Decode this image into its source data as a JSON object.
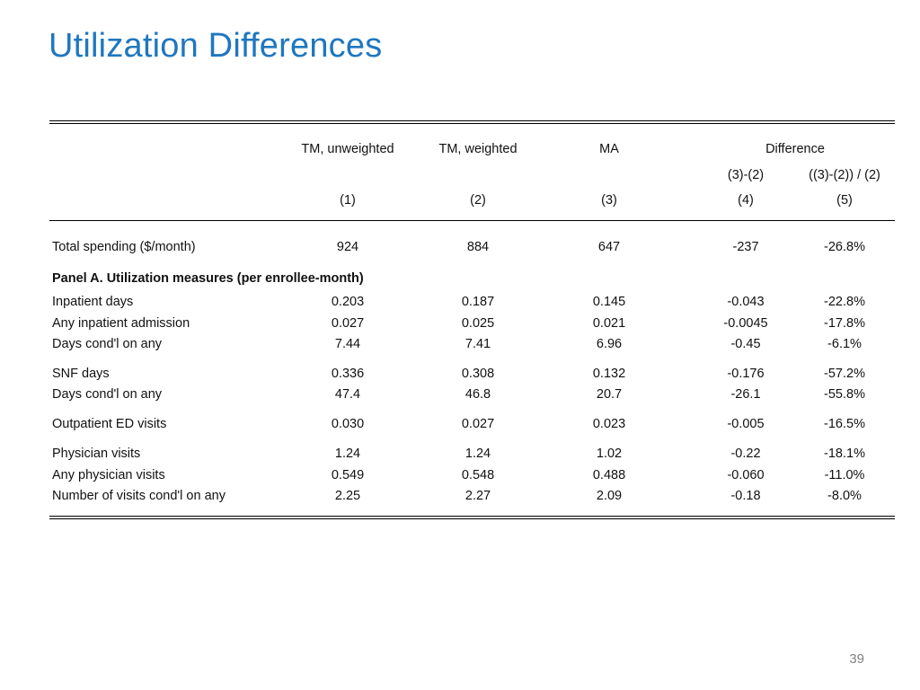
{
  "title": "Utilization Differences",
  "header": {
    "col1": "TM, unweighted",
    "col2": "TM, weighted",
    "col3": "MA",
    "difference": "Difference",
    "col4_sub": "(3)-(2)",
    "col5_sub": "((3)-(2)) / (2)",
    "num1": "(1)",
    "num2": "(2)",
    "num3": "(3)",
    "num4": "(4)",
    "num5": "(5)"
  },
  "total": {
    "label": "Total spending ($/month)",
    "values": [
      "924",
      "884",
      "647",
      "-237",
      "-26.8%"
    ]
  },
  "panel_a_heading": "Panel A. Utilization measures (per enrollee-month)",
  "rows": [
    {
      "label": "Inpatient days",
      "values": [
        "0.203",
        "0.187",
        "0.145",
        "-0.043",
        "-22.8%"
      ]
    },
    {
      "label": "Any inpatient admission",
      "values": [
        "0.027",
        "0.025",
        "0.021",
        "-0.0045",
        "-17.8%"
      ]
    },
    {
      "label": "Days cond'l on any",
      "values": [
        "7.44",
        "7.41",
        "6.96",
        "-0.45",
        "-6.1%"
      ]
    },
    {
      "label": "SNF days",
      "values": [
        "0.336",
        "0.308",
        "0.132",
        "-0.176",
        "-57.2%"
      ]
    },
    {
      "label": "Days cond'l on any",
      "values": [
        "47.4",
        "46.8",
        "20.7",
        "-26.1",
        "-55.8%"
      ]
    },
    {
      "label": "Outpatient ED visits",
      "values": [
        "0.030",
        "0.027",
        "0.023",
        "-0.005",
        "-16.5%"
      ]
    },
    {
      "label": "Physician visits",
      "values": [
        "1.24",
        "1.24",
        "1.02",
        "-0.22",
        "-18.1%"
      ]
    },
    {
      "label": "Any physician visits",
      "values": [
        "0.549",
        "0.548",
        "0.488",
        "-0.060",
        "-11.0%"
      ]
    },
    {
      "label": "Number of visits cond'l on any",
      "values": [
        "2.25",
        "2.27",
        "2.09",
        "-0.18",
        "-8.0%"
      ]
    }
  ],
  "page_number": "39"
}
